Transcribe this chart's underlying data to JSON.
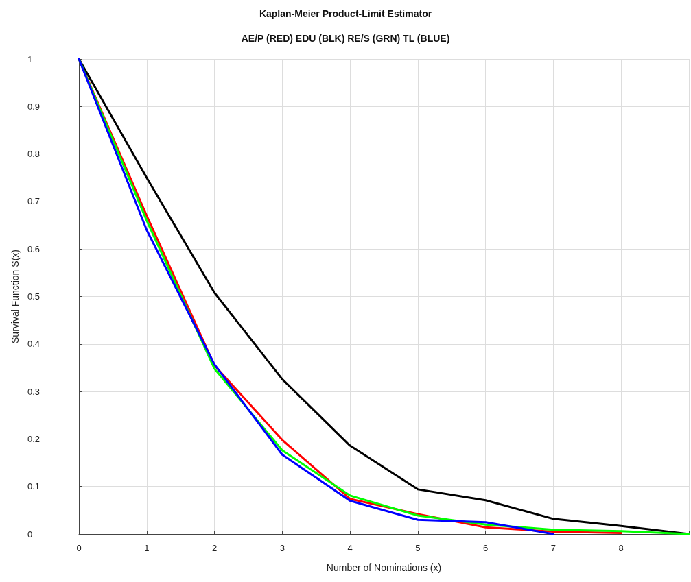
{
  "chart_data": {
    "type": "line",
    "title": "Kaplan-Meier Product-Limit Estimator",
    "subtitle": "AE/P (RED) EDU (BLK) RE/S (GRN) TL (BLUE)",
    "xlabel": "Number of Nominations (x)",
    "ylabel": "Survival Function S(x)",
    "series": [
      {
        "color": "#ff0000",
        "x": [
          0,
          1,
          2,
          3,
          4,
          5,
          6,
          7,
          8
        ],
        "values": [
          1,
          0.67,
          0.355,
          0.198,
          0.074,
          0.042,
          0.014,
          0.005,
          0.002
        ]
      },
      {
        "color": "#000000",
        "x": [
          0,
          1,
          2,
          3,
          4,
          5,
          6,
          7,
          8,
          9
        ],
        "values": [
          1,
          0.75,
          0.508,
          0.326,
          0.186,
          0.094,
          0.071,
          0.032,
          0.017,
          0
        ]
      },
      {
        "color": "#00ff00",
        "x": [
          0,
          1,
          2,
          3,
          4,
          5,
          6,
          7,
          8,
          9
        ],
        "values": [
          1,
          0.66,
          0.348,
          0.176,
          0.081,
          0.039,
          0.02,
          0.009,
          0.006,
          0
        ]
      },
      {
        "color": "#0000ff",
        "x": [
          0,
          1,
          2,
          3,
          4,
          5,
          6,
          7
        ],
        "values": [
          1,
          0.64,
          0.357,
          0.167,
          0.07,
          0.03,
          0.025,
          0
        ]
      }
    ],
    "xlim": [
      0,
      9
    ],
    "xticks": [
      0,
      1,
      2,
      3,
      4,
      5,
      6,
      7,
      8
    ],
    "ylim": [
      0,
      1
    ],
    "yticks": [
      0,
      0.1,
      0.2,
      0.3,
      0.4,
      0.5,
      0.6,
      0.7,
      0.8,
      0.9,
      1
    ],
    "grid": true,
    "marker": "none",
    "line_style": "solid"
  }
}
